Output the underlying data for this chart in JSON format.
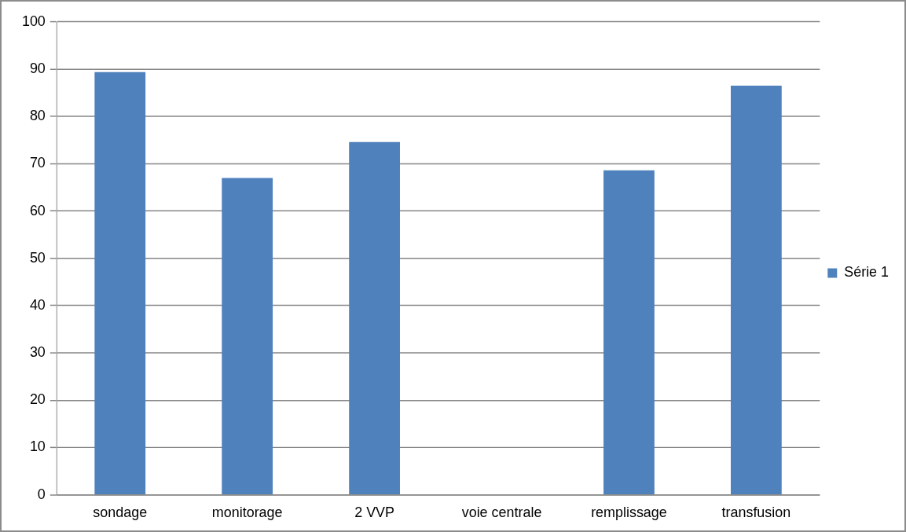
{
  "chart_data": {
    "type": "bar",
    "categories": [
      "sondage",
      "monitorage",
      "2 VVP",
      "voie centrale",
      "remplissage",
      "transfusion"
    ],
    "series": [
      {
        "name": "Série 1",
        "color": "#4f81bd",
        "values": [
          89.4,
          67,
          74.6,
          0,
          68.6,
          86.5
        ]
      }
    ],
    "ylim": [
      0,
      100
    ],
    "yticks": [
      0,
      10,
      20,
      30,
      40,
      50,
      60,
      70,
      80,
      90,
      100
    ],
    "grid": "y",
    "legend": "right"
  }
}
